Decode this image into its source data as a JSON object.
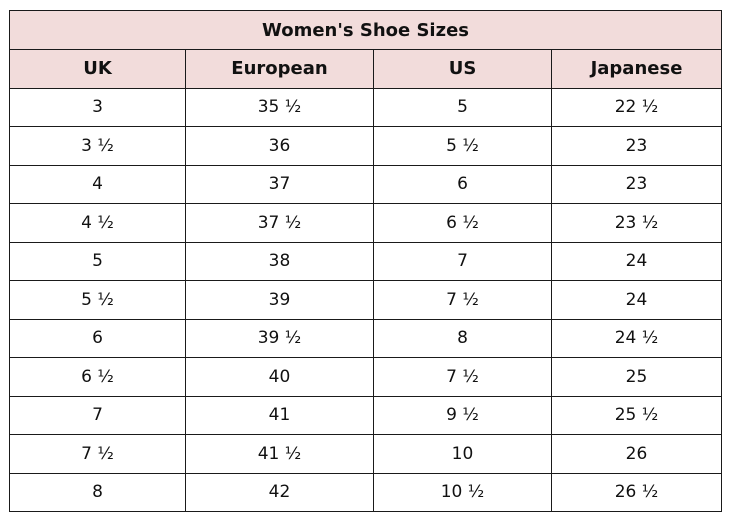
{
  "table": {
    "title": "Women's Shoe Sizes",
    "header_bg": "#f2dcdb",
    "columns": [
      "UK",
      "European",
      "US",
      "Japanese"
    ],
    "rows": [
      [
        "3",
        "35 ½",
        "5",
        "22 ½"
      ],
      [
        "3 ½",
        "36",
        "5 ½",
        "23"
      ],
      [
        "4",
        "37",
        "6",
        "23"
      ],
      [
        "4 ½",
        "37 ½",
        "6 ½",
        "23 ½"
      ],
      [
        "5",
        "38",
        "7",
        "24"
      ],
      [
        "5 ½",
        "39",
        "7 ½",
        "24"
      ],
      [
        "6",
        "39 ½",
        "8",
        "24 ½"
      ],
      [
        "6 ½",
        "40",
        "7 ½",
        "25"
      ],
      [
        "7",
        "41",
        "9 ½",
        "25 ½"
      ],
      [
        "7 ½",
        "41 ½",
        "10",
        "26"
      ],
      [
        "8",
        "42",
        "10 ½",
        "26 ½"
      ]
    ]
  }
}
